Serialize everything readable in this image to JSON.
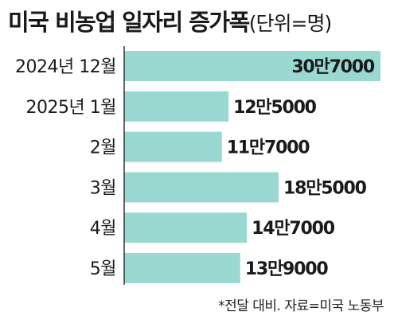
{
  "title": "미국 비농업 일자리 증가폭",
  "unit": "(단위=명)",
  "note": "*전달 대비. 자료=미국 노동부",
  "colors": {
    "bar": "#9ad8d2",
    "axis": "#333333",
    "text": "#1a1a1a"
  },
  "chart_data": {
    "type": "bar",
    "orientation": "horizontal",
    "categories": [
      "2024년 12월",
      "2025년 1월",
      "2월",
      "3월",
      "4월",
      "5월"
    ],
    "values": [
      307000,
      125000,
      117000,
      185000,
      147000,
      139000
    ],
    "value_labels": [
      "30만7000",
      "12만5000",
      "11만7000",
      "18만5000",
      "14만7000",
      "13만9000"
    ],
    "xlim": [
      0,
      307000
    ]
  }
}
